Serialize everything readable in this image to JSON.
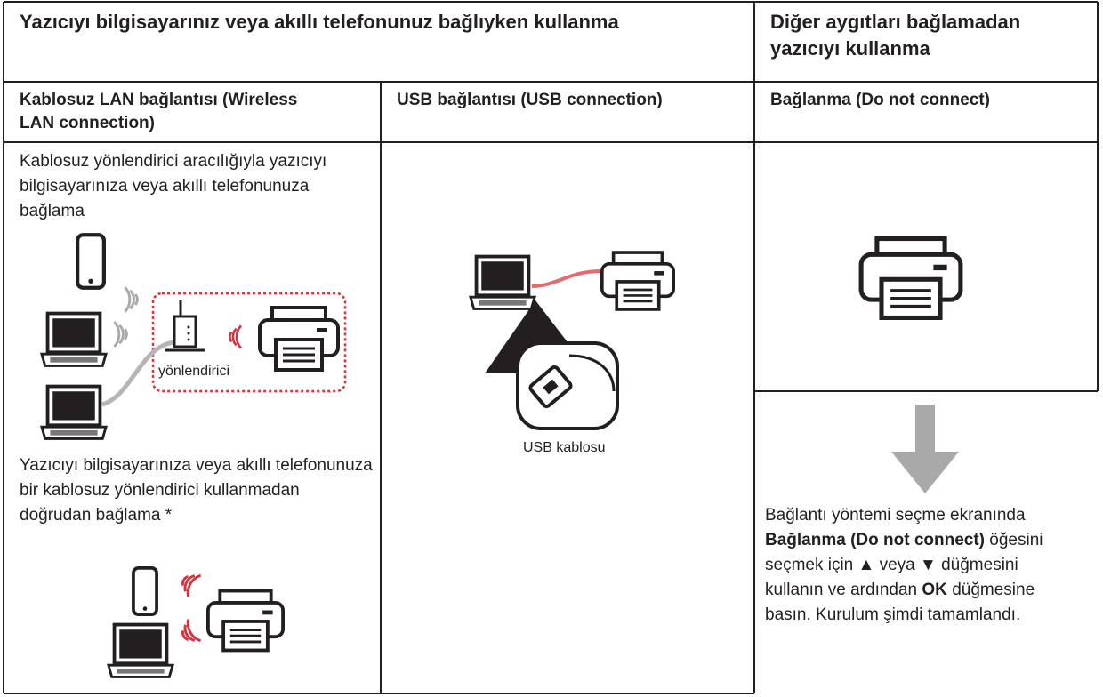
{
  "header": {
    "connected_title": "Yazıcıyı bilgisayarınız veya akıllı telefonunuz bağlıyken kullanma",
    "standalone_title": "Diğer aygıtları bağlamadan yazıcıyı kullanma"
  },
  "columns": [
    {
      "title": "Kablosuz LAN bağlantısı (Wireless LAN connection)"
    },
    {
      "title": "USB bağlantısı (USB connection)"
    },
    {
      "title": "Bağlanma (Do not connect)"
    }
  ],
  "wireless": {
    "router_description": "Kablosuz yönlendirici aracılığıyla yazıcıyı bilgisayarınıza veya akıllı telefonunuza bağlama",
    "router_label": "yönlendirici",
    "direct_description": "Yazıcıyı bilgisayarınıza veya akıllı telefonunuza bir kablosuz yönlendirici kullanmadan doğrudan bağlama *"
  },
  "usb": {
    "cable_label": "USB kablosu"
  },
  "instructions": [
    "Bağlantı yöntemi seçme ekranında",
    "Bağlanma (Do not connect)",
    "öğesini seçmek için ▲ veya ▼ düğmesini kullanın ve ardından",
    "OK",
    "düğmesine basın. Kurulum şimdi tamamlandı."
  ]
}
